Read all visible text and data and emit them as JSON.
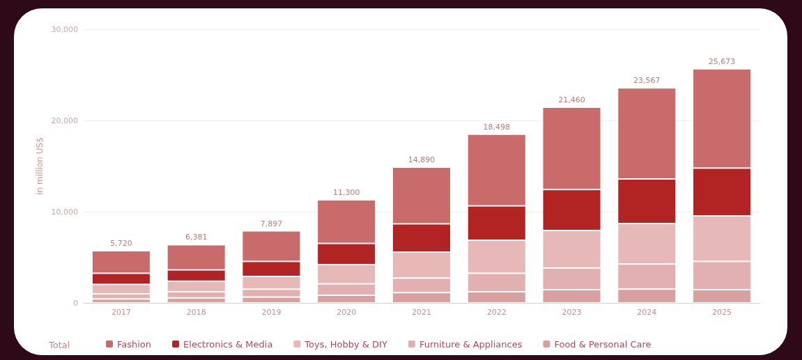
{
  "chart_data": {
    "type": "bar",
    "stacked": true,
    "ylabel": "in million US$",
    "legend_title": "Total",
    "categories": [
      "2017",
      "2018",
      "2019",
      "2020",
      "2021",
      "2022",
      "2023",
      "2024",
      "2025"
    ],
    "totals": [
      "5,720",
      "6,381",
      "7,897",
      "11,300",
      "14,890",
      "18,498",
      "21,460",
      "23,567",
      "25,673"
    ],
    "series": [
      {
        "name": "Food & Personal Care",
        "color": "#d9a0a0",
        "values": [
          430,
          550,
          640,
          840,
          1130,
          1220,
          1450,
          1510,
          1450
        ]
      },
      {
        "name": "Furniture & Appliances",
        "color": "#e2b0b0",
        "values": [
          570,
          670,
          860,
          1250,
          1590,
          2030,
          2380,
          2750,
          3100
        ]
      },
      {
        "name": "Toys, Hobby & DIY",
        "color": "#e6b8b8",
        "values": [
          1030,
          1160,
          1400,
          2110,
          2850,
          3620,
          4110,
          4440,
          4990
        ]
      },
      {
        "name": "Electronics & Media",
        "color": "#b22424",
        "values": [
          1220,
          1240,
          1650,
          2320,
          3100,
          3770,
          4490,
          4890,
          5240
        ]
      },
      {
        "name": "Fashion",
        "color": "#c96b6b",
        "values": [
          2470,
          2760,
          3350,
          4780,
          6220,
          7860,
          9030,
          9980,
          10890
        ]
      }
    ],
    "ylim": [
      0,
      30000
    ],
    "yticks": [
      0,
      {
        "value": 10000,
        "label": "10,000"
      },
      {
        "value": 20000,
        "label": "20,000"
      },
      {
        "value": 30000,
        "label": "30,000"
      }
    ],
    "grid": "y",
    "legend": "bottom left"
  }
}
